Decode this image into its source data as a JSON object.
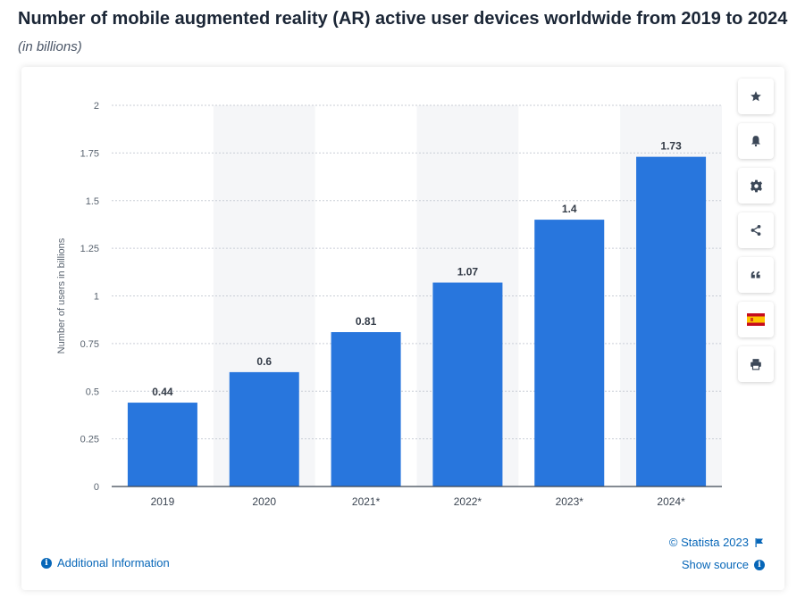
{
  "header": {
    "title": "Number of mobile augmented reality (AR) active user devices worldwide from 2019 to 2024",
    "subtitle": "(in billions)"
  },
  "toolbar": {
    "buttons": [
      {
        "icon": "star-icon"
      },
      {
        "icon": "bell-icon"
      },
      {
        "icon": "gear-icon"
      },
      {
        "icon": "share-icon"
      },
      {
        "icon": "quote-icon"
      },
      {
        "icon": "flag-es-icon"
      },
      {
        "icon": "print-icon"
      }
    ]
  },
  "footer": {
    "copyright": "© Statista 2023",
    "additional_info": "Additional Information",
    "show_source": "Show source"
  },
  "colors": {
    "bar": "#2876dd",
    "band": "#f5f6f8",
    "accent": "#0666b8"
  },
  "chart_data": {
    "type": "bar",
    "categories": [
      "2019",
      "2020",
      "2021*",
      "2022*",
      "2023*",
      "2024*"
    ],
    "values": [
      0.44,
      0.6,
      0.81,
      1.07,
      1.4,
      1.73
    ],
    "value_labels": [
      "0.44",
      "0.6",
      "0.81",
      "1.07",
      "1.4",
      "1.73"
    ],
    "title": "Number of mobile augmented reality (AR) active user devices worldwide from 2019 to 2024",
    "subtitle": "(in billions)",
    "xlabel": "",
    "ylabel": "Number of users in billions",
    "ylim": [
      0,
      2
    ],
    "yticks": [
      0,
      0.25,
      0.5,
      0.75,
      1,
      1.25,
      1.5,
      1.75,
      2
    ],
    "ytick_labels": [
      "0",
      "0.25",
      "0.5",
      "0.75",
      "1",
      "1.25",
      "1.5",
      "1.75",
      "2"
    ],
    "grid": true,
    "legend": "none"
  }
}
